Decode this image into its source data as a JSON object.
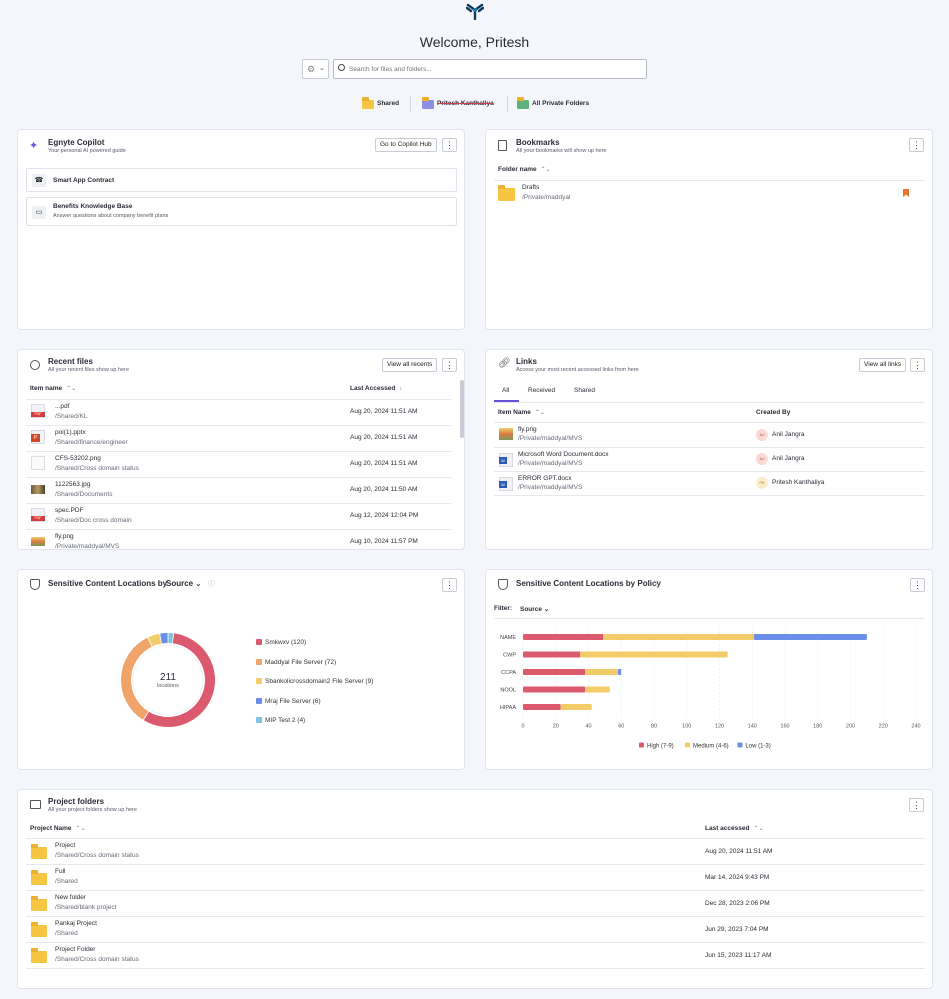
{
  "header": {
    "title": "Welcome, Pritesh",
    "search_placeholder": "Search for files and folders..."
  },
  "quick_links": [
    "Shared",
    "Pritesh Kanthaliya",
    "All Private Folders"
  ],
  "copilot": {
    "title": "Egnyte Copilot",
    "subtitle": "Your personal AI powered guide",
    "button": "Go to Copilot Hub",
    "items": [
      {
        "title": "Smart App Contract",
        "desc": ""
      },
      {
        "title": "Benefits Knowledge Base",
        "desc": "Answer questions about company benefit plans"
      }
    ]
  },
  "bookmarks": {
    "title": "Bookmarks",
    "subtitle": "All your bookmarks will show up here",
    "col": "Folder name",
    "rows": [
      {
        "name": "Drafts",
        "path": "/Private/maddyal"
      }
    ]
  },
  "recent": {
    "title": "Recent files",
    "subtitle": "All your recent files show up here",
    "button": "View all recents",
    "col_name": "Item name",
    "col_date": "Last Accessed",
    "rows": [
      {
        "name": "...pdf",
        "path": "/Shared/KL",
        "date": "Aug 20, 2024 11:51 AM",
        "icon": "pdf"
      },
      {
        "name": "poi(1).pptx",
        "path": "/Shared/finance/engineer",
        "date": "Aug 20, 2024 11:51 AM",
        "icon": "pptx"
      },
      {
        "name": "CFS-53202.png",
        "path": "/Shared/Cross domain status",
        "date": "Aug 20, 2024 11:51 AM",
        "icon": "blank"
      },
      {
        "name": "1122563.jpg",
        "path": "/Shared/Documents",
        "date": "Aug 20, 2024 11:50 AM",
        "icon": "img"
      },
      {
        "name": "spec.PDF",
        "path": "/Shared/Doc cross domain",
        "date": "Aug 12, 2024 12:04 PM",
        "icon": "pdf"
      },
      {
        "name": "fly.png",
        "path": "/Private/maddyal/MVS",
        "date": "Aug 10, 2024 11:57 PM",
        "icon": "img2"
      }
    ]
  },
  "links": {
    "title": "Links",
    "subtitle": "Access your most recent accessed links from here",
    "button": "View all links",
    "tabs": [
      "All",
      "Received",
      "Shared"
    ],
    "col_name": "Item Name",
    "col_by": "Created By",
    "rows": [
      {
        "name": "fly.png",
        "path": "/Private/maddyal/MVS",
        "by": "Anil Jangra",
        "initials": "AJ",
        "icon": "img2"
      },
      {
        "name": "Microsoft Word Document.docx",
        "path": "/Private/maddyal/MVS",
        "by": "Anil Jangra",
        "initials": "AJ",
        "icon": "docx"
      },
      {
        "name": "ERROR GPT.docx",
        "path": "/Private/maddyal/MVS",
        "by": "Pritesh Kanthaliya",
        "initials": "PK",
        "icon": "docx"
      }
    ]
  },
  "source_chart": {
    "title": "Sensitive Content Locations by",
    "dropdown": "Source",
    "center_value": "211",
    "center_label": "locations"
  },
  "policy_chart": {
    "title": "Sensitive Content Locations by Policy",
    "filter_label": "Filter:",
    "filter_value": "Source"
  },
  "chart_data": [
    {
      "type": "pie",
      "title": "Sensitive Content Locations by Source",
      "slices": [
        {
          "label": "Smkwxv (120)",
          "value": 120,
          "color": "#dc5a6e"
        },
        {
          "label": "Maddyal File Server (72)",
          "value": 72,
          "color": "#f0a46a"
        },
        {
          "label": "Sbankolicrossdomain2 File Server (9)",
          "value": 9,
          "color": "#f3cc6a"
        },
        {
          "label": "Mraj File Server (6)",
          "value": 6,
          "color": "#6b8ee8"
        },
        {
          "label": "MIP Test 2 (4)",
          "value": 4,
          "color": "#7cc4d8"
        }
      ]
    },
    {
      "type": "bar",
      "title": "Sensitive Content Locations by Policy",
      "orientation": "horizontal",
      "stacked": true,
      "categories": [
        "NAME",
        "CWP",
        "CCPA",
        "NOOL",
        "HIPAA"
      ],
      "xlim": [
        0,
        240
      ],
      "xticks": [
        0,
        20,
        40,
        60,
        80,
        100,
        120,
        140,
        160,
        180,
        200,
        220,
        240
      ],
      "series": [
        {
          "name": "High (7-9)",
          "color": "#dc5a6e",
          "values": [
            49,
            35,
            38,
            38,
            23
          ]
        },
        {
          "name": "Medium (4-6)",
          "color": "#f3cc6a",
          "values": [
            92,
            90,
            20,
            15,
            19
          ]
        },
        {
          "name": "Low (1-3)",
          "color": "#6b8ee8",
          "values": [
            69,
            0,
            2,
            0,
            0
          ]
        }
      ]
    }
  ],
  "projects": {
    "title": "Project folders",
    "subtitle": "All your project folders show up here",
    "col_name": "Project Name",
    "col_date": "Last accessed",
    "rows": [
      {
        "name": "Project",
        "path": "/Shared/Cross domain status",
        "date": "Aug 20, 2024 11:51 AM"
      },
      {
        "name": "Full",
        "path": "/Shared",
        "date": "Mar 14, 2024 9:43 PM"
      },
      {
        "name": "New folder",
        "path": "/Shared/blank project",
        "date": "Dec 28, 2023 2:06 PM"
      },
      {
        "name": "Pankaj Project",
        "path": "/Shared",
        "date": "Jun 29, 2023 7:04 PM"
      },
      {
        "name": "Project Folder",
        "path": "/Shared/Cross domain status",
        "date": "Jun 15, 2023 11:17 AM"
      }
    ]
  }
}
